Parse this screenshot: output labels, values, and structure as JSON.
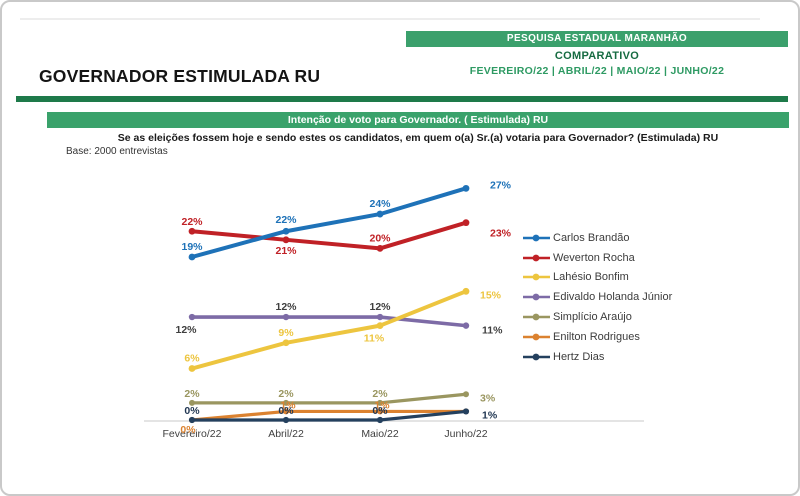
{
  "page": {
    "header": {
      "banner": "PESQUISA ESTADUAL MARANHÃO",
      "subtitle": "COMPARATIVO",
      "periods": "FEVEREIRO/22   |   ABRIL/22   |   MAIO/22   |   JUNHO/22",
      "title": "GOVERNADOR ESTIMULADA RU"
    },
    "section": {
      "bar_title": "Intenção de voto para Governador. ( Estimulada) RU",
      "question": "Se as eleições fossem hoje e sendo estes os candidatos, em quem o(a) Sr.(a) votaria para Governador? (Estimulada) RU",
      "base": "Base: 2000 entrevistas"
    },
    "colors": {
      "banner_green": "#3BA06C",
      "rule_green": "#1E7A4A",
      "comparativo_green": "#166B41",
      "periods_green": "#2E9A63"
    }
  },
  "chart_data": {
    "type": "line",
    "title": "Intenção de voto para Governador. ( Estimulada) RU",
    "categories": [
      "Fevereiro/22",
      "Abril/22",
      "Maio/22",
      "Junho/22"
    ],
    "series": [
      {
        "name": "Carlos Brandão",
        "color": "#1E72B8",
        "label_color": "#1E72B8",
        "values": [
          19,
          22,
          24,
          27
        ],
        "labels": [
          "19%",
          "22%",
          "24%",
          "27%"
        ]
      },
      {
        "name": "Weverton Rocha",
        "color": "#C02126",
        "label_color": "#C02126",
        "values": [
          22,
          21,
          20,
          23
        ],
        "labels": [
          "22%",
          "21%",
          "20%",
          "23%"
        ]
      },
      {
        "name": "Lahésio Bonfim",
        "color": "#EDC53F",
        "label_color": "#EDC53F",
        "values": [
          6,
          9,
          11,
          15
        ],
        "labels": [
          "6%",
          "9%",
          "11%",
          "15%"
        ]
      },
      {
        "name": "Edivaldo Holanda Júnior",
        "color": "#7D6BA6",
        "label_color": "#3F3F3F",
        "values": [
          12,
          12,
          12,
          11
        ],
        "labels": [
          "12%",
          "12%",
          "12%",
          "11%"
        ]
      },
      {
        "name": "Simplício Araújo",
        "color": "#9A9660",
        "label_color": "#9A9660",
        "values": [
          2,
          2,
          2,
          3
        ],
        "labels": [
          "2%",
          "2%",
          "2%",
          "3%"
        ]
      },
      {
        "name": "Enilton Rodrigues",
        "color": "#DB8230",
        "label_color": "#DB8230",
        "values": [
          0,
          1,
          1,
          1
        ],
        "labels": [
          "0%",
          "1%",
          "1%",
          ""
        ]
      },
      {
        "name": "Hertz Dias",
        "color": "#24405E",
        "label_color": "#1F3551",
        "values": [
          0,
          0,
          0,
          1
        ],
        "labels": [
          "0%",
          "0%",
          "0%",
          "1%"
        ]
      }
    ],
    "ylim": [
      0,
      30
    ],
    "xlabel": "",
    "ylabel": "",
    "grid": false,
    "legend_position": "right",
    "axis_label_color": "#3f3f3f"
  }
}
